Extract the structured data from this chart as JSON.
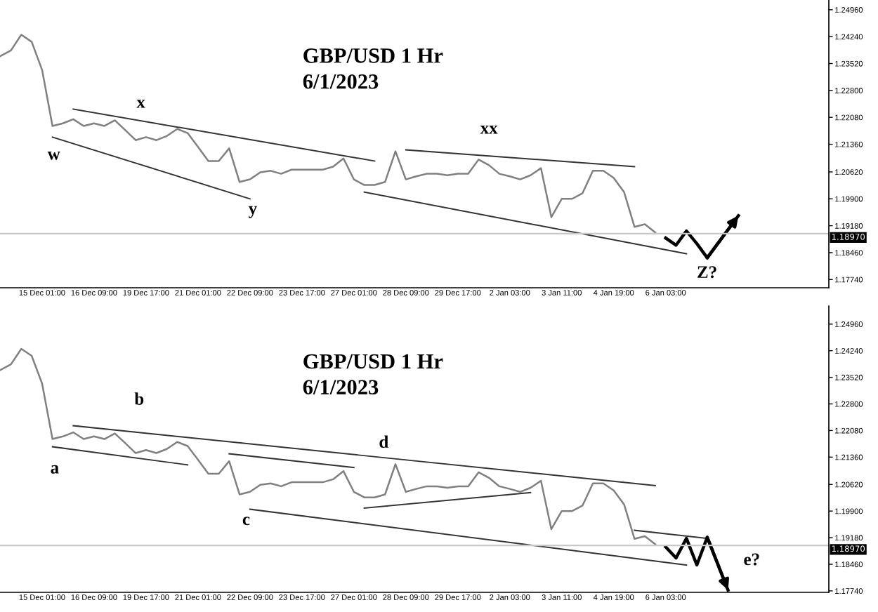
{
  "chart_data": [
    {
      "type": "line",
      "title": "GBP/USD 1 Hr",
      "subtitle": "6/1/2023",
      "legend": false,
      "grid": false,
      "marker": "none",
      "line_style": "solid",
      "categories": [
        null,
        null,
        null,
        null,
        "15 Dec 01:00",
        null,
        null,
        null,
        null,
        "16 Dec 09:00",
        null,
        null,
        null,
        null,
        "19 Dec 17:00",
        null,
        null,
        null,
        null,
        "21 Dec 01:00",
        null,
        null,
        null,
        null,
        "22 Dec 09:00",
        null,
        null,
        null,
        null,
        "23 Dec 17:00",
        null,
        null,
        null,
        null,
        "27 Dec 01:00",
        null,
        null,
        null,
        null,
        "28 Dec 09:00",
        null,
        null,
        null,
        null,
        "29 Dec 17:00",
        null,
        null,
        null,
        null,
        "2 Jan 03:00",
        null,
        null,
        null,
        null,
        "3 Jan 11:00",
        null,
        null,
        null,
        null,
        "4 Jan 19:00",
        null,
        null,
        null,
        null,
        "6 Jan 03:00",
        null,
        null,
        null,
        null,
        null,
        null,
        null,
        null,
        null,
        null,
        null,
        null,
        null,
        null,
        null
      ],
      "ylim": [
        1.1752,
        1.2522
      ],
      "yticks": [
        {
          "value": 1.1774,
          "label": "1.17740"
        },
        {
          "value": 1.1846,
          "label": "1.18460"
        },
        {
          "value": 1.1918,
          "label": "1.19180"
        },
        {
          "value": 1.199,
          "label": "1.19900"
        },
        {
          "value": 1.2062,
          "label": "1.20620"
        },
        {
          "value": 1.2136,
          "label": "1.21360"
        },
        {
          "value": 1.2208,
          "label": "1.22080"
        },
        {
          "value": 1.228,
          "label": "1.22800"
        },
        {
          "value": 1.2352,
          "label": "1.23520"
        },
        {
          "value": 1.2424,
          "label": "1.24240"
        },
        {
          "value": 1.2496,
          "label": "1.24960"
        }
      ],
      "series": [
        {
          "color": "#808080",
          "values": [
            1.2372,
            1.2387,
            1.2429,
            1.241,
            1.2335,
            1.2185,
            1.2192,
            1.2203,
            1.2185,
            1.2192,
            1.2185,
            1.22,
            1.2174,
            1.2147,
            1.2155,
            1.2147,
            1.2158,
            1.2177,
            1.2166,
            1.2129,
            1.2091,
            1.2091,
            1.2125,
            1.2035,
            1.2042,
            1.2061,
            1.2065,
            1.2057,
            1.2068,
            1.2068,
            1.2068,
            1.2068,
            1.2076,
            1.2098,
            1.2042,
            1.2027,
            1.2027,
            1.2035,
            1.2117,
            1.2042,
            1.205,
            1.2057,
            1.2057,
            1.2053,
            1.2057,
            1.2057,
            1.2095,
            1.208,
            1.2057,
            1.205,
            1.2042,
            1.2053,
            1.2072,
            1.1941,
            1.199,
            1.199,
            1.2005,
            1.2065,
            1.2065,
            1.2046,
            1.2008,
            1.1915,
            1.1922,
            1.19,
            null,
            null,
            null,
            null,
            null,
            null,
            null,
            null,
            null,
            null,
            null,
            null,
            null,
            null,
            null,
            null
          ]
        },
        {
          "color": "#333333",
          "values": [
            null,
            null,
            null,
            null,
            null,
            null,
            null,
            1.223,
            null,
            null,
            null,
            null,
            null,
            null,
            null,
            null,
            null,
            null,
            null,
            null,
            null,
            null,
            null,
            null,
            null,
            null,
            null,
            null,
            null,
            null,
            null,
            null,
            null,
            null,
            null,
            null,
            1.2091,
            null,
            null,
            null,
            null,
            null,
            null,
            null,
            null,
            null,
            null,
            null,
            null,
            null,
            null,
            null,
            null,
            null,
            null,
            null,
            null,
            null,
            null,
            null,
            null,
            null,
            null,
            null,
            null,
            null,
            null,
            null,
            null,
            null,
            null,
            null,
            null,
            null,
            null,
            null,
            null,
            null,
            null,
            null
          ]
        },
        {
          "color": "#333333",
          "values": [
            null,
            null,
            null,
            null,
            null,
            1.2155,
            null,
            null,
            null,
            null,
            null,
            null,
            null,
            null,
            null,
            null,
            null,
            null,
            null,
            null,
            null,
            null,
            null,
            null,
            1.199,
            null,
            null,
            null,
            null,
            null,
            null,
            null,
            null,
            null,
            null,
            null,
            null,
            null,
            null,
            null,
            null,
            null,
            null,
            null,
            null,
            null,
            null,
            null,
            null,
            null,
            null,
            null,
            null,
            null,
            null,
            null,
            null,
            null,
            null,
            null,
            null,
            null,
            null,
            null,
            null,
            null,
            null,
            null,
            null,
            null,
            null,
            null,
            null,
            null,
            null,
            null,
            null,
            null,
            null,
            null
          ]
        },
        {
          "color": "#333333",
          "values": [
            null,
            null,
            null,
            null,
            null,
            null,
            null,
            null,
            null,
            null,
            null,
            null,
            null,
            null,
            null,
            null,
            null,
            null,
            null,
            null,
            null,
            null,
            null,
            null,
            null,
            null,
            null,
            null,
            null,
            null,
            null,
            null,
            null,
            null,
            null,
            null,
            null,
            null,
            null,
            1.2121,
            null,
            null,
            null,
            null,
            null,
            null,
            null,
            null,
            null,
            null,
            null,
            null,
            null,
            null,
            null,
            null,
            null,
            null,
            null,
            null,
            null,
            1.2076,
            null,
            null,
            null,
            null,
            null,
            null,
            null,
            null,
            null,
            null,
            null,
            null,
            null,
            null,
            null,
            null,
            null,
            null
          ]
        },
        {
          "color": "#333333",
          "values": [
            null,
            null,
            null,
            null,
            null,
            null,
            null,
            null,
            null,
            null,
            null,
            null,
            null,
            null,
            null,
            null,
            null,
            null,
            null,
            null,
            null,
            null,
            null,
            null,
            null,
            null,
            null,
            null,
            null,
            null,
            null,
            null,
            null,
            null,
            null,
            1.2008,
            null,
            null,
            null,
            null,
            null,
            null,
            null,
            null,
            null,
            null,
            null,
            null,
            null,
            null,
            null,
            null,
            null,
            null,
            null,
            null,
            null,
            null,
            null,
            null,
            null,
            null,
            null,
            null,
            null,
            null,
            1.1843,
            null,
            null,
            null,
            null,
            null,
            null,
            null,
            null,
            null,
            null,
            null,
            null,
            null
          ]
        },
        {
          "color": "#000000",
          "values": [
            null,
            null,
            null,
            null,
            null,
            null,
            null,
            null,
            null,
            null,
            null,
            null,
            null,
            null,
            null,
            null,
            null,
            null,
            null,
            null,
            null,
            null,
            null,
            null,
            null,
            null,
            null,
            null,
            null,
            null,
            null,
            null,
            null,
            null,
            null,
            null,
            null,
            null,
            null,
            null,
            null,
            null,
            null,
            null,
            null,
            null,
            null,
            null,
            null,
            null,
            null,
            null,
            null,
            null,
            null,
            null,
            null,
            null,
            null,
            null,
            null,
            null,
            null,
            null,
            1.1885,
            1.1866,
            1.1904,
            1.187,
            1.1832,
            null,
            null,
            1.1945,
            null,
            null,
            null,
            null,
            null,
            null,
            null,
            null
          ]
        }
      ],
      "ref_lines": [
        {
          "axis": "y",
          "value": 1.1897,
          "label": "1.18970",
          "color": "#c8c8c8"
        }
      ],
      "annotations": [
        "w",
        "x",
        "y",
        "xx",
        {
          "text": "Z?",
          "y": 1.1832
        }
      ]
    },
    {
      "type": "line",
      "title": "GBP/USD 1 Hr",
      "subtitle": "6/1/2023",
      "legend": false,
      "grid": false,
      "marker": "none",
      "line_style": "solid",
      "categories": [
        null,
        null,
        null,
        null,
        "15 Dec 01:00",
        null,
        null,
        null,
        null,
        "16 Dec 09:00",
        null,
        null,
        null,
        null,
        "19 Dec 17:00",
        null,
        null,
        null,
        null,
        "21 Dec 01:00",
        null,
        null,
        null,
        null,
        "22 Dec 09:00",
        null,
        null,
        null,
        null,
        "23 Dec 17:00",
        null,
        null,
        null,
        null,
        "27 Dec 01:00",
        null,
        null,
        null,
        null,
        "28 Dec 09:00",
        null,
        null,
        null,
        null,
        "29 Dec 17:00",
        null,
        null,
        null,
        null,
        "2 Jan 03:00",
        null,
        null,
        null,
        null,
        "3 Jan 11:00",
        null,
        null,
        null,
        null,
        "4 Jan 19:00",
        null,
        null,
        null,
        null,
        "6 Jan 03:00",
        null,
        null,
        null,
        null,
        null,
        null,
        null,
        null,
        null,
        null,
        null,
        null,
        null,
        null,
        null
      ],
      "ylim": [
        1.177,
        1.2545
      ],
      "yticks": [
        {
          "value": 1.1774,
          "label": "1.17740"
        },
        {
          "value": 1.1846,
          "label": "1.18460"
        },
        {
          "value": 1.1918,
          "label": "1.19180"
        },
        {
          "value": 1.199,
          "label": "1.19900"
        },
        {
          "value": 1.2062,
          "label": "1.20620"
        },
        {
          "value": 1.2136,
          "label": "1.21360"
        },
        {
          "value": 1.2208,
          "label": "1.22080"
        },
        {
          "value": 1.228,
          "label": "1.22800"
        },
        {
          "value": 1.2352,
          "label": "1.23520"
        },
        {
          "value": 1.2424,
          "label": "1.24240"
        },
        {
          "value": 1.2496,
          "label": "1.24960"
        }
      ],
      "series": [
        {
          "color": "#808080",
          "values": [
            1.2372,
            1.2387,
            1.2429,
            1.241,
            1.2335,
            1.2185,
            1.2192,
            1.2203,
            1.2185,
            1.2192,
            1.2185,
            1.22,
            1.2174,
            1.2147,
            1.2155,
            1.2147,
            1.2158,
            1.2177,
            1.2166,
            1.2129,
            1.2091,
            1.2091,
            1.2125,
            1.2035,
            1.2042,
            1.2061,
            1.2065,
            1.2057,
            1.2068,
            1.2068,
            1.2068,
            1.2068,
            1.2076,
            1.2098,
            1.2042,
            1.2027,
            1.2027,
            1.2035,
            1.2117,
            1.2042,
            1.205,
            1.2057,
            1.2057,
            1.2053,
            1.2057,
            1.2057,
            1.2095,
            1.208,
            1.2057,
            1.205,
            1.2042,
            1.2053,
            1.2072,
            1.1941,
            1.199,
            1.199,
            1.2005,
            1.2065,
            1.2065,
            1.2046,
            1.2008,
            1.1915,
            1.1922,
            1.19,
            null,
            null,
            null,
            null,
            null,
            null,
            null,
            null,
            null,
            null,
            null,
            null,
            null,
            null,
            null,
            null
          ]
        },
        {
          "color": "#333333",
          "values": [
            null,
            null,
            null,
            null,
            null,
            null,
            null,
            1.2221,
            null,
            null,
            null,
            null,
            null,
            null,
            null,
            null,
            null,
            null,
            null,
            null,
            null,
            null,
            null,
            null,
            null,
            null,
            null,
            null,
            null,
            null,
            null,
            null,
            null,
            null,
            null,
            null,
            null,
            null,
            null,
            null,
            null,
            null,
            null,
            null,
            null,
            null,
            null,
            null,
            null,
            null,
            null,
            null,
            null,
            null,
            null,
            null,
            null,
            null,
            null,
            null,
            null,
            null,
            null,
            1.2059,
            null,
            null,
            null,
            null,
            null,
            null,
            null,
            null,
            null,
            null,
            null,
            null,
            null,
            null,
            null,
            null
          ]
        },
        {
          "color": "#333333",
          "values": [
            null,
            null,
            null,
            null,
            null,
            1.2164,
            null,
            null,
            null,
            null,
            null,
            null,
            null,
            null,
            null,
            null,
            null,
            null,
            1.2115,
            null,
            null,
            null,
            null,
            null,
            null,
            null,
            null,
            null,
            null,
            null,
            null,
            null,
            null,
            null,
            null,
            null,
            null,
            null,
            null,
            null,
            null,
            null,
            null,
            null,
            null,
            null,
            null,
            null,
            null,
            null,
            null,
            null,
            null,
            null,
            null,
            null,
            null,
            null,
            null,
            null,
            null,
            null,
            null,
            null,
            null,
            null,
            null,
            null,
            null,
            null,
            null,
            null,
            null,
            null,
            null,
            null,
            null,
            null,
            null,
            null
          ]
        },
        {
          "color": "#333333",
          "values": [
            null,
            null,
            null,
            null,
            null,
            null,
            null,
            null,
            null,
            null,
            null,
            null,
            null,
            null,
            null,
            null,
            null,
            null,
            null,
            null,
            null,
            null,
            1.2145,
            null,
            null,
            null,
            null,
            null,
            null,
            null,
            null,
            null,
            null,
            null,
            1.2108,
            null,
            null,
            null,
            null,
            null,
            null,
            null,
            null,
            null,
            null,
            null,
            null,
            null,
            null,
            null,
            null,
            null,
            null,
            null,
            null,
            null,
            null,
            null,
            null,
            null,
            null,
            null,
            null,
            null,
            null,
            null,
            null,
            null,
            null,
            null,
            null,
            null,
            null,
            null,
            null,
            null,
            null,
            null,
            null,
            null
          ]
        },
        {
          "color": "#333333",
          "values": [
            null,
            null,
            null,
            null,
            null,
            null,
            null,
            null,
            null,
            null,
            null,
            null,
            null,
            null,
            null,
            null,
            null,
            null,
            null,
            null,
            null,
            null,
            null,
            null,
            1.1995,
            null,
            null,
            null,
            null,
            null,
            null,
            null,
            null,
            null,
            null,
            null,
            null,
            null,
            null,
            null,
            null,
            null,
            null,
            null,
            null,
            null,
            null,
            null,
            null,
            null,
            null,
            null,
            null,
            null,
            null,
            null,
            null,
            null,
            null,
            null,
            null,
            null,
            null,
            null,
            null,
            null,
            1.1844,
            null,
            null,
            null,
            null,
            null,
            null,
            null,
            null,
            null,
            null,
            null,
            null,
            null
          ]
        },
        {
          "color": "#333333",
          "values": [
            null,
            null,
            null,
            null,
            null,
            null,
            null,
            null,
            null,
            null,
            null,
            null,
            null,
            null,
            null,
            null,
            null,
            null,
            null,
            null,
            null,
            null,
            null,
            null,
            null,
            null,
            null,
            null,
            null,
            null,
            null,
            null,
            null,
            null,
            null,
            1.1998,
            null,
            null,
            null,
            null,
            null,
            null,
            null,
            null,
            null,
            null,
            null,
            null,
            null,
            null,
            null,
            1.204,
            null,
            null,
            null,
            null,
            null,
            null,
            null,
            null,
            null,
            null,
            null,
            null,
            null,
            null,
            null,
            null,
            null,
            null,
            null,
            null,
            null,
            null,
            null,
            null,
            null,
            null,
            null,
            null
          ]
        },
        {
          "color": "#333333",
          "values": [
            null,
            null,
            null,
            null,
            null,
            null,
            null,
            null,
            null,
            null,
            null,
            null,
            null,
            null,
            null,
            null,
            null,
            null,
            null,
            null,
            null,
            null,
            null,
            null,
            null,
            null,
            null,
            null,
            null,
            null,
            null,
            null,
            null,
            null,
            null,
            null,
            null,
            null,
            null,
            null,
            null,
            null,
            null,
            null,
            null,
            null,
            null,
            null,
            null,
            null,
            null,
            null,
            null,
            null,
            null,
            null,
            null,
            null,
            null,
            null,
            null,
            1.1938,
            null,
            null,
            null,
            null,
            null,
            null,
            1.1916,
            null,
            null,
            null,
            null,
            null,
            null,
            null,
            null,
            null,
            null,
            null
          ]
        },
        {
          "color": "#000000",
          "values": [
            null,
            null,
            null,
            null,
            null,
            null,
            null,
            null,
            null,
            null,
            null,
            null,
            null,
            null,
            null,
            null,
            null,
            null,
            null,
            null,
            null,
            null,
            null,
            null,
            null,
            null,
            null,
            null,
            null,
            null,
            null,
            null,
            null,
            null,
            null,
            null,
            null,
            null,
            null,
            null,
            null,
            null,
            null,
            null,
            null,
            null,
            null,
            null,
            null,
            null,
            null,
            null,
            null,
            null,
            null,
            null,
            null,
            null,
            null,
            null,
            null,
            null,
            null,
            null,
            1.1893,
            1.1863,
            1.1916,
            1.1844,
            1.1919,
            null,
            1.1776,
            null,
            null,
            null,
            null,
            null,
            null,
            null,
            null,
            null
          ]
        }
      ],
      "ref_lines": [
        {
          "axis": "y",
          "value": 1.1897,
          "label": "1.18970",
          "color": "#c8c8c8"
        }
      ],
      "annotations": [
        "a",
        "b",
        "c",
        "d",
        "e?"
      ]
    }
  ]
}
